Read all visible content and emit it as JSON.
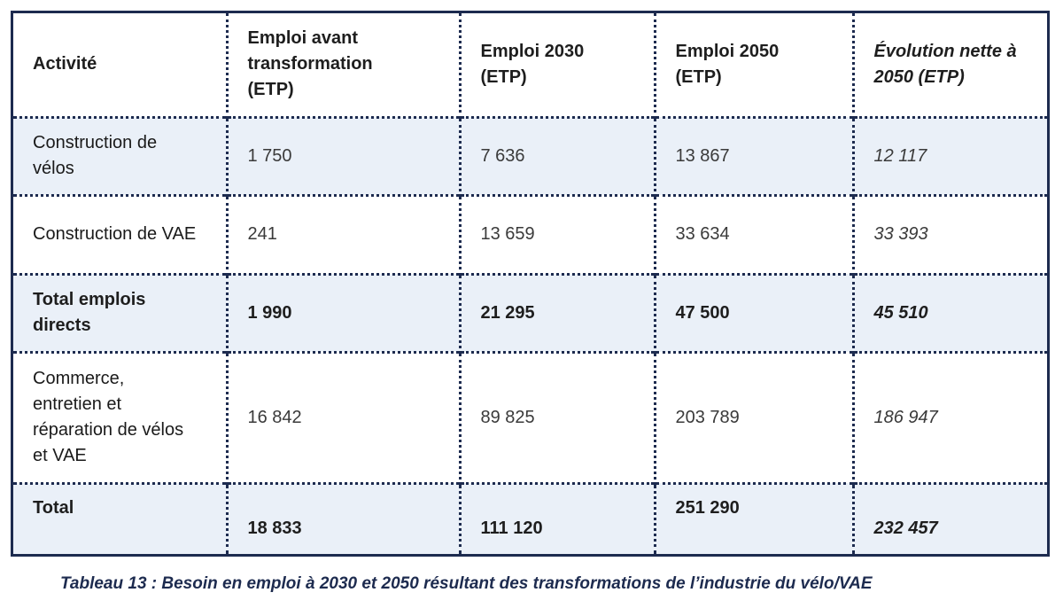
{
  "table": {
    "headers": [
      "Activité",
      "Emploi avant transformation (ETP)",
      "Emploi 2030 (ETP)",
      "Emploi 2050 (ETP)",
      "Évolution nette à 2050 (ETP)"
    ],
    "rows": [
      {
        "activite": "Construction de vélos",
        "avant": "1 750",
        "e2030": "7 636",
        "e2050": "13 867",
        "evolution": "12 117"
      },
      {
        "activite": "Construction de VAE",
        "avant": "241",
        "e2030": "13 659",
        "e2050": "33 634",
        "evolution": "33 393"
      },
      {
        "activite": "Total emplois directs",
        "avant": "1 990",
        "e2030": "21 295",
        "e2050": "47 500",
        "evolution": "45 510"
      },
      {
        "activite": "Commerce, entretien et réparation de vélos et VAE",
        "avant": "16 842",
        "e2030": "89 825",
        "e2050": "203 789",
        "evolution": "186 947"
      },
      {
        "activite": "Total",
        "avant": "18 833",
        "e2030": "111 120",
        "e2050": "251 290",
        "evolution": "232 457"
      }
    ]
  },
  "caption": "Tableau 13 : Besoin en emploi à 2030 et 2050 résultant des transformations de l’industrie du vélo/VAE",
  "colors": {
    "border": "#1d2b4f",
    "shaded_row": "#eaf0f8",
    "caption_text": "#1d2b4f"
  }
}
